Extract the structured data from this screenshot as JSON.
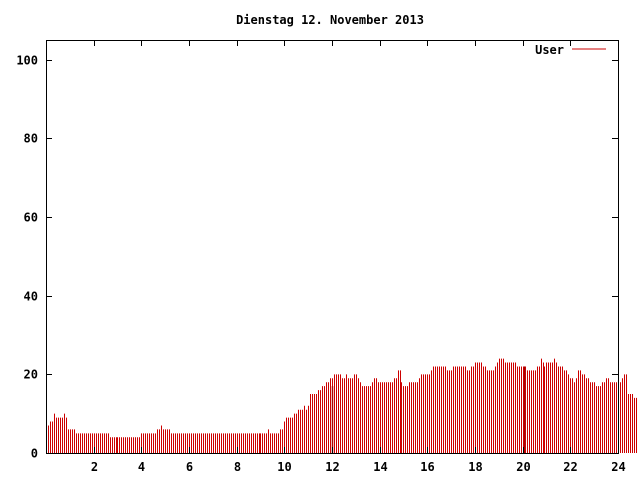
{
  "chart_data": {
    "type": "bar",
    "title": "Dienstag 12. November 2013",
    "xlabel": "",
    "ylabel": "",
    "xlim": [
      0,
      24
    ],
    "ylim": [
      0,
      105
    ],
    "xticks": [
      "2",
      "4",
      "6",
      "8",
      "10",
      "12",
      "14",
      "16",
      "18",
      "20",
      "22",
      "24"
    ],
    "yticks": [
      "0",
      "20",
      "40",
      "60",
      "80",
      "100"
    ],
    "grid": false,
    "legend": "top-right",
    "colors": {
      "series": "#cc0000",
      "axis": "#000000",
      "background": "#ffffff"
    },
    "series": [
      {
        "name": "User",
        "bar_interval_hours": 0.08333,
        "values": [
          8,
          7,
          8,
          8,
          10,
          9,
          9,
          9,
          9,
          10,
          9,
          6,
          6,
          6,
          6,
          5,
          5,
          5,
          5,
          5,
          5,
          5,
          5,
          5,
          5,
          5,
          5,
          5,
          5,
          5,
          5,
          5,
          4,
          4,
          4,
          4,
          4,
          4,
          4,
          4,
          4,
          4,
          4,
          4,
          4,
          4,
          4,
          4,
          5,
          5,
          5,
          5,
          5,
          5,
          5,
          5,
          6,
          6,
          7,
          6,
          6,
          6,
          6,
          5,
          5,
          5,
          5,
          5,
          5,
          5,
          5,
          5,
          5,
          5,
          5,
          5,
          5,
          5,
          5,
          5,
          5,
          5,
          5,
          5,
          5,
          5,
          5,
          5,
          5,
          5,
          5,
          5,
          5,
          5,
          5,
          5,
          5,
          5,
          5,
          5,
          5,
          5,
          5,
          5,
          5,
          5,
          5,
          5,
          5,
          5,
          5,
          5,
          6,
          5,
          5,
          5,
          5,
          5,
          6,
          6,
          8,
          9,
          9,
          9,
          9,
          10,
          10,
          11,
          11,
          11,
          12,
          11,
          12,
          15,
          15,
          15,
          15,
          16,
          16,
          17,
          17,
          18,
          18,
          19,
          19,
          20,
          20,
          20,
          20,
          19,
          19,
          20,
          19,
          19,
          19,
          20,
          20,
          19,
          18,
          17,
          17,
          17,
          17,
          17,
          18,
          19,
          19,
          18,
          18,
          18,
          18,
          18,
          18,
          18,
          18,
          19,
          19,
          21,
          21,
          18,
          17,
          17,
          17,
          18,
          18,
          18,
          18,
          18,
          19,
          20,
          20,
          20,
          20,
          20,
          21,
          22,
          22,
          22,
          22,
          22,
          22,
          22,
          21,
          21,
          21,
          22,
          22,
          22,
          22,
          22,
          22,
          22,
          21,
          21,
          22,
          22,
          23,
          23,
          23,
          23,
          22,
          22,
          21,
          21,
          21,
          21,
          22,
          23,
          24,
          24,
          24,
          23,
          23,
          23,
          23,
          23,
          23,
          22,
          22,
          22,
          22,
          22,
          21,
          21,
          21,
          21,
          21,
          22,
          22,
          24,
          23,
          22,
          23,
          23,
          23,
          23,
          24,
          23,
          22,
          22,
          22,
          21,
          21,
          20,
          19,
          19,
          18,
          19,
          21,
          21,
          20,
          20,
          19,
          19,
          18,
          18,
          18,
          17,
          17,
          17,
          18,
          18,
          19,
          19,
          18,
          18,
          18,
          18,
          18,
          18,
          19,
          20,
          20,
          15,
          15,
          15,
          14,
          14
        ]
      }
    ]
  }
}
